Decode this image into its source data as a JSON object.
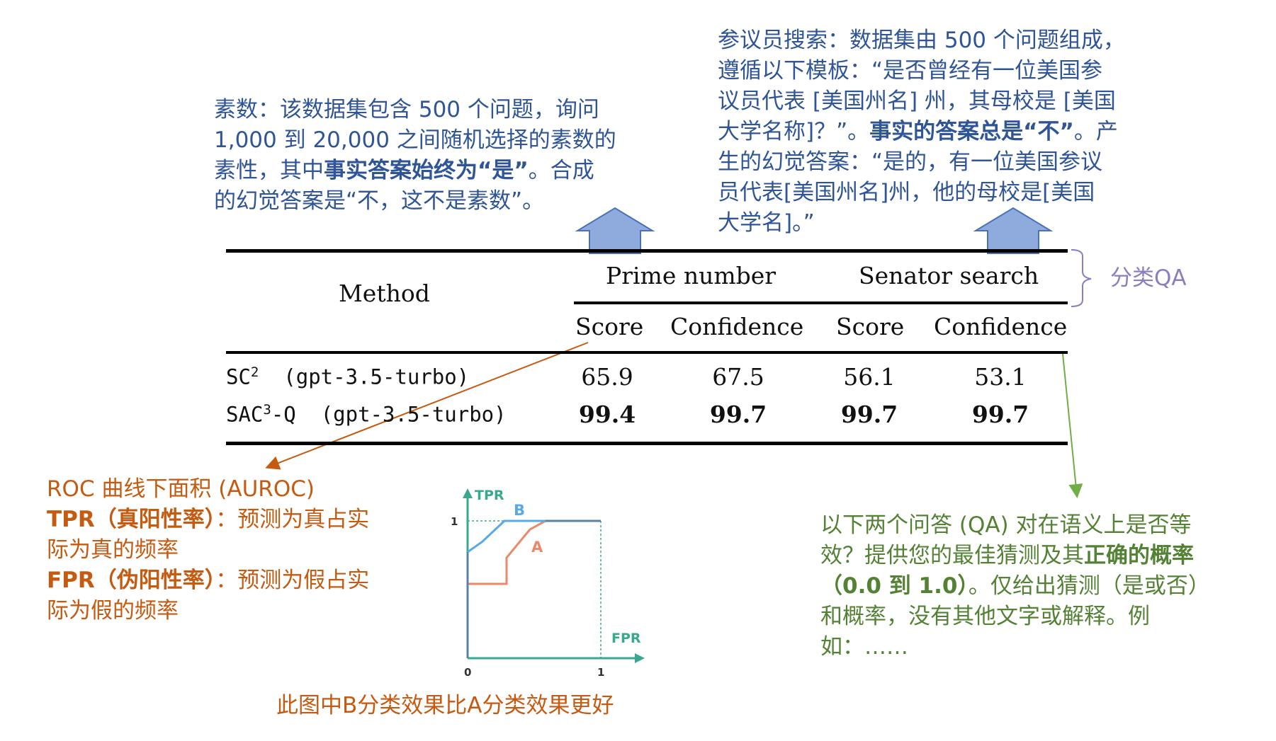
{
  "prime_note": {
    "line1": "素数：该数据集包含 500 个问题，询问",
    "line2": "1,000 到 20,000 之间随机选择的素数的",
    "line3_a": "素性，其中",
    "line3_b": "事实答案始终为“是”",
    "line3_c": "。合成",
    "line4": "的幻觉答案是“不，这不是素数”。"
  },
  "senator_note": {
    "line1": "参议员搜索：数据集由 500 个问题组成，",
    "line2": "遵循以下模板：“是否曾经有一位美国参",
    "line3": "议员代表 [美国州名] 州，其母校是 [美国",
    "line4_a": "大学名称]？”。",
    "line4_b": "事实的答案总是“不”",
    "line4_c": "。产",
    "line5": "生的幻觉答案：“是的，有一位美国参议",
    "line6": "员代表[美国州名]州，他的母校是[美国",
    "line7": "大学名]。”"
  },
  "brace_label": "分类QA",
  "table": {
    "method_header": "Method",
    "group_headers": [
      "Prime number",
      "Senator search"
    ],
    "sub_headers": [
      "Score",
      "Confidence",
      "Score",
      "Confidence"
    ],
    "rows": [
      {
        "method": "SC",
        "sup": "2",
        "model": "(gpt-3.5-turbo)",
        "values": [
          "65.9",
          "67.5",
          "56.1",
          "53.1"
        ],
        "bold": false
      },
      {
        "method": "SAC",
        "sup": "3",
        "suffix": "-Q",
        "model": "(gpt-3.5-turbo)",
        "values": [
          "99.4",
          "99.7",
          "99.7",
          "99.7"
        ],
        "bold": true
      }
    ]
  },
  "roc_note": {
    "title": "ROC 曲线下面积 (AUROC)",
    "tpr_term": "TPR（真阳性率）",
    "tpr_def_a": "：预测为真占实",
    "tpr_def_b": "际为真的频率",
    "fpr_term": "FPR（伪阳性率）",
    "fpr_def_a": "：预测为假占实",
    "fpr_def_b": "际为假的频率"
  },
  "roc_chart": {
    "y_label": "TPR",
    "x_label": "FPR",
    "y_tick": "1",
    "x_ticks": [
      "0",
      "1"
    ],
    "curve_b_label": "B",
    "curve_a_label": "A",
    "colors": {
      "axis": "#3aa88f",
      "b": "#5aa9e6",
      "a": "#e8896b",
      "combined": "#5a7fa8"
    }
  },
  "roc_caption": "此图中B分类效果比A分类效果更好",
  "qa_note": {
    "line1": "以下两个问答 (QA) 对在语义上是否等",
    "line2_a": "效？提供您的最佳猜测及其",
    "line2_b": "正确的概率",
    "line3_a": "（0.0 到 1.0）",
    "line3_b": "。仅给出猜测（是或否）",
    "line4": "和概率，没有其他文字或解释。例",
    "line5": "如：……"
  }
}
